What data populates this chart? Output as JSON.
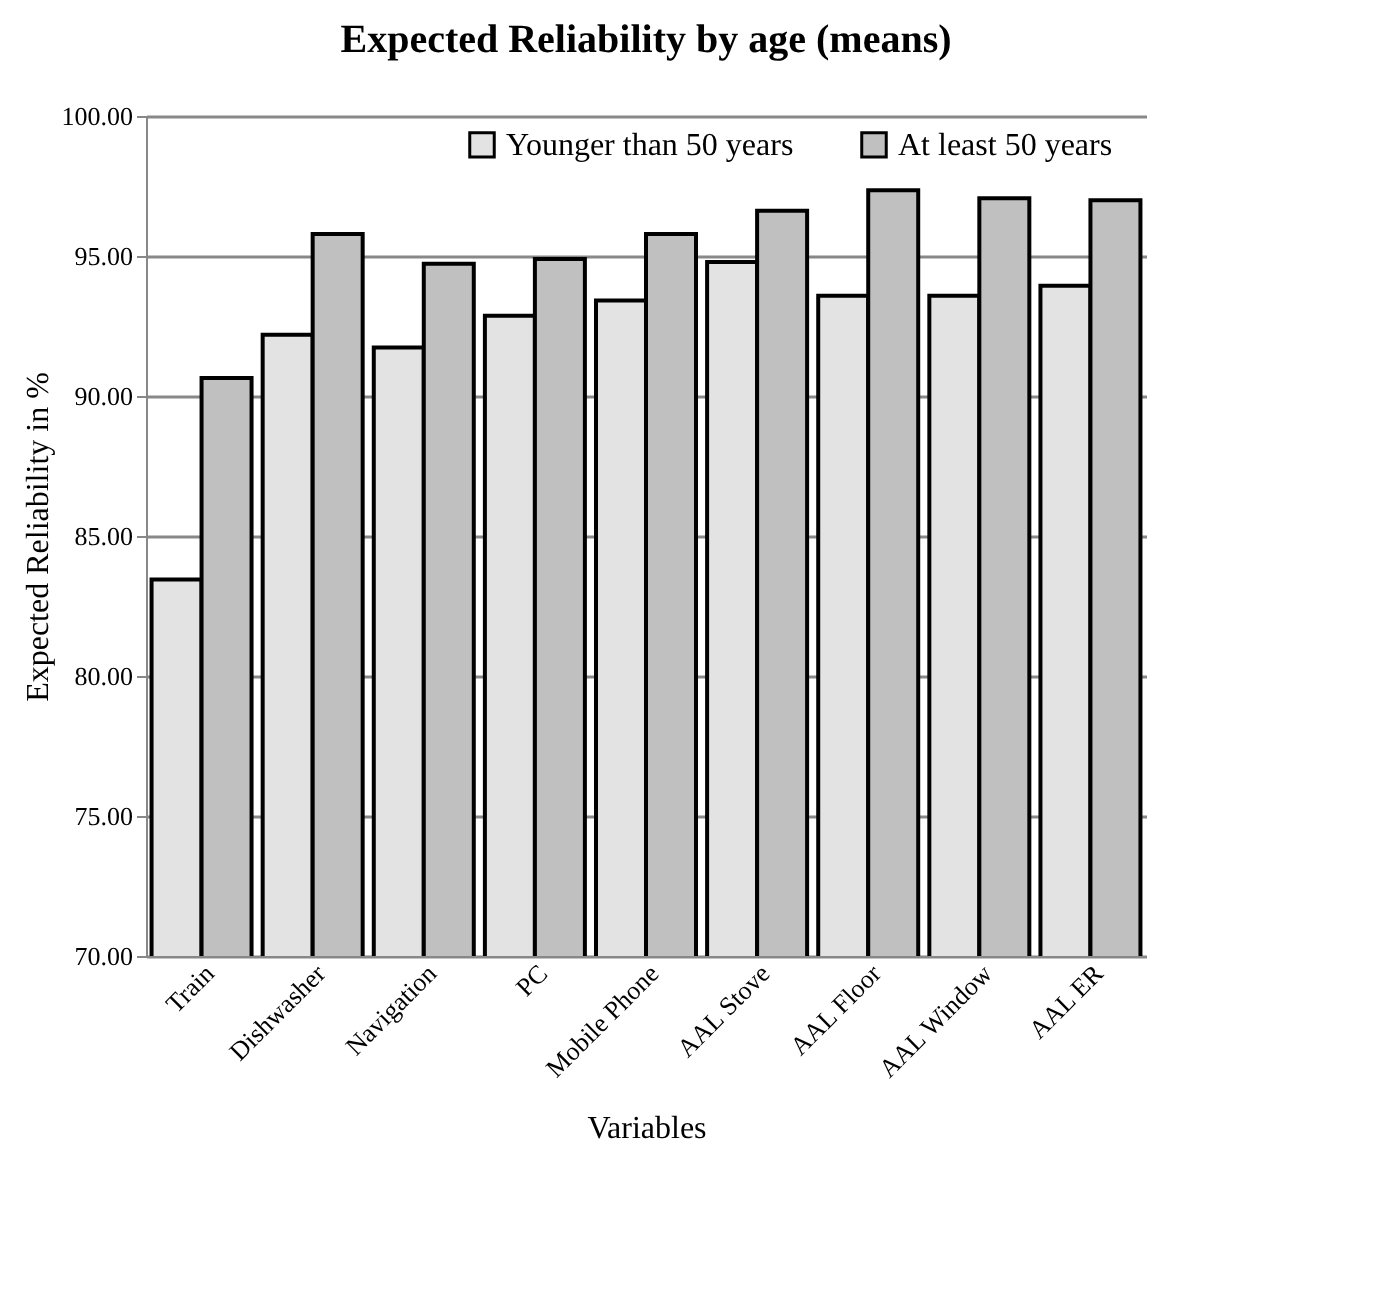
{
  "chart_data": {
    "type": "bar",
    "title": "Expected Reliability by age (means)",
    "xlabel": "Variables",
    "ylabel": "Expected  Reliability in %",
    "categories": [
      "Train",
      "Dishwasher",
      "Navigation",
      "PC",
      "Mobile Phone",
      "AAL Stove",
      "AAL Floor",
      "AAL Window",
      "AAL ER"
    ],
    "series": [
      {
        "name": "Younger than 50 years",
        "color": "#e3e3e3",
        "values": [
          83.45,
          92.19,
          91.73,
          92.87,
          93.41,
          94.79,
          93.58,
          93.58,
          93.94
        ]
      },
      {
        "name": "At least 50 years",
        "color": "#c0c0c0",
        "values": [
          90.64,
          95.79,
          94.72,
          94.89,
          95.79,
          96.62,
          97.35,
          97.06,
          96.99
        ]
      }
    ],
    "ylim": [
      70,
      100
    ],
    "yticks": [
      {
        "value": 70,
        "label": "70.00"
      },
      {
        "value": 75,
        "label": "75.00"
      },
      {
        "value": 80,
        "label": "80.00"
      },
      {
        "value": 85,
        "label": "85.00"
      },
      {
        "value": 90,
        "label": "90.00"
      },
      {
        "value": 95,
        "label": "95.00"
      },
      {
        "value": 100,
        "label": "100.00"
      }
    ],
    "grid": "y",
    "legend": "top"
  }
}
